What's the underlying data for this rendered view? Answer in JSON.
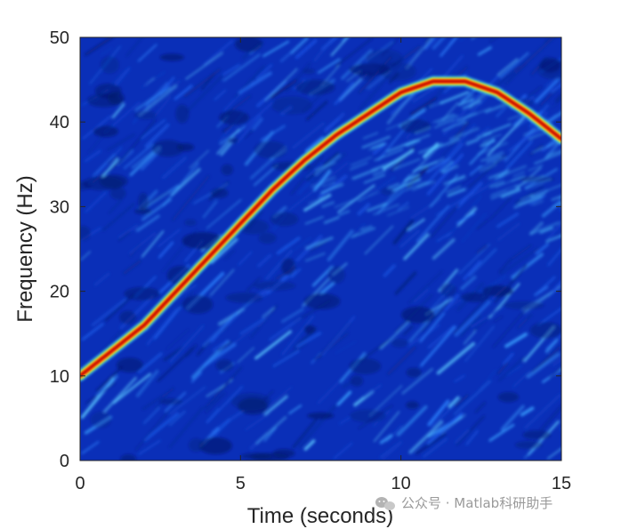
{
  "chart_data": {
    "type": "heatmap",
    "title": "",
    "xlabel": "Time (seconds)",
    "ylabel": "Frequency (Hz)",
    "xlim": [
      0,
      15
    ],
    "ylim": [
      0,
      50
    ],
    "x_ticks": [
      0,
      5,
      10,
      15
    ],
    "y_ticks": [
      0,
      10,
      20,
      30,
      40,
      50
    ],
    "colormap": "jet",
    "grid": false,
    "background_level": "low (dark blue) with scattered light-blue/cyan noise streaks",
    "ridge": {
      "name": "",
      "x": [
        0,
        1,
        2,
        3,
        4,
        5,
        6,
        7,
        8,
        9,
        10,
        11,
        12,
        13,
        14,
        15
      ],
      "y": [
        10,
        13,
        16,
        20,
        24,
        28,
        32,
        35.5,
        38.5,
        41,
        43.5,
        44.8,
        44.8,
        43.5,
        41,
        38
      ]
    }
  },
  "watermark": {
    "text": "公众号 · Matlab科研助手",
    "icon": "wechat-icon"
  },
  "colors": {
    "plot_bg": "#0a2fb8",
    "axis": "#262626",
    "ridge_core": "#b20000",
    "watermark": "#9a9a9a"
  }
}
